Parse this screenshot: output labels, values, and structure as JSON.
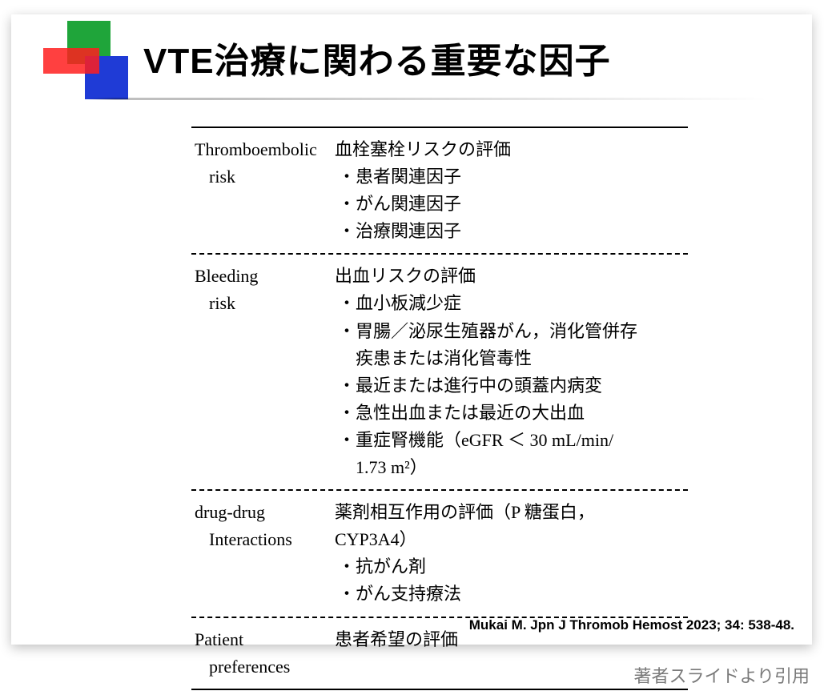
{
  "slide": {
    "title": "VTE治療に関わる重要な因子",
    "logo_colors": {
      "green": "#1fa53a",
      "blue": "#1f3bd6",
      "red": "#ff1f1f"
    },
    "table": {
      "rows": [
        {
          "left_line1": "Thromboembolic",
          "left_line2": "risk",
          "right_heading": "血栓塞栓リスクの評価",
          "right_bullets": [
            "・患者関連因子",
            "・がん関連因子",
            "・治療関連因子"
          ]
        },
        {
          "left_line1": "Bleeding",
          "left_line2": "risk",
          "right_heading": "出血リスクの評価",
          "right_bullets": [
            "・血小板減少症",
            "・胃腸／泌尿生殖器がん，消化管併存",
            "疾患または消化管毒性",
            "・最近または進行中の頭蓋内病変",
            "・急性出血または最近の大出血",
            "・重症腎機能（eGFR ＜ 30 mL/min/",
            "1.73 m²）"
          ],
          "bullet_is_continuation": [
            false,
            false,
            true,
            false,
            false,
            false,
            true
          ]
        },
        {
          "left_line1": "drug-drug",
          "left_line2": "Interactions",
          "right_heading": "薬剤相互作用の評価（P 糖蛋白，",
          "right_heading_cont": "CYP3A4）",
          "right_bullets": [
            "・抗がん剤",
            "・がん支持療法"
          ]
        },
        {
          "left_line1": "Patient",
          "left_line2": "preferences",
          "right_heading": "患者希望の評価",
          "right_bullets": []
        }
      ]
    },
    "citation": "Mukai M. Jpn J Thromob Hemost 2023; 34: 538-48.",
    "credit": "著者スライドより引用",
    "style": {
      "title_fontsize": 44,
      "body_fontsize": 22,
      "slide_bg": "#ffffff",
      "shadow": "0 4px 14px rgba(0,0,0,0.25)"
    }
  }
}
